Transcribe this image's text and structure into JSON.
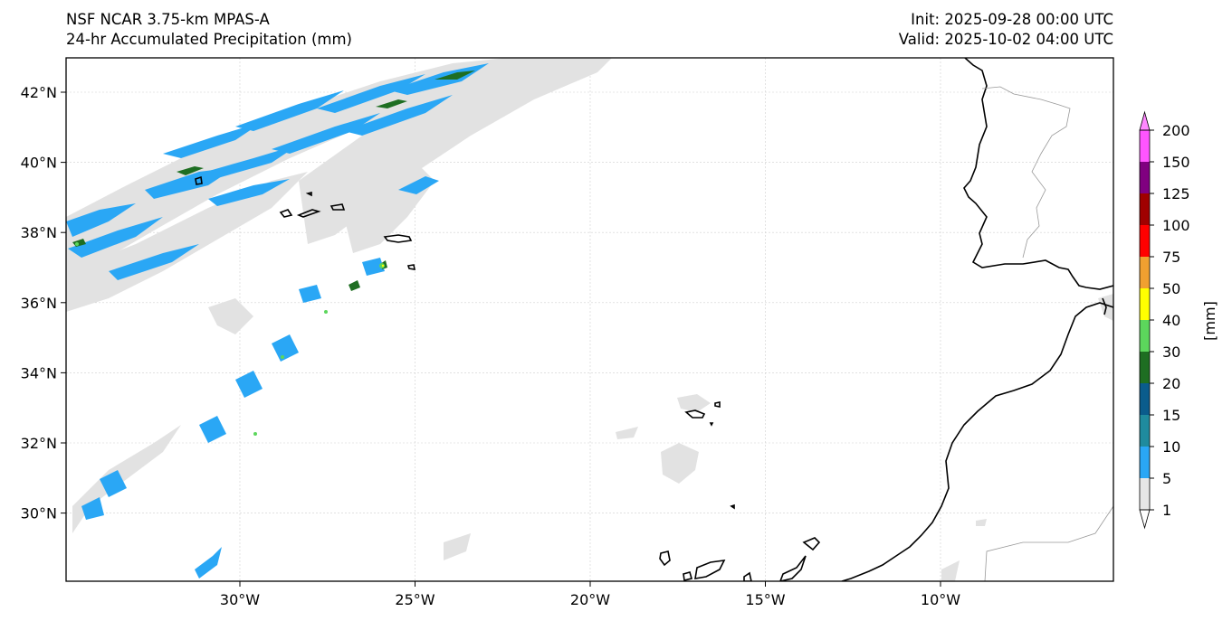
{
  "header": {
    "title_line1": "NSF NCAR 3.75-km MPAS-A",
    "title_line2": "24-hr Accumulated Precipitation (mm)",
    "init": "Init: 2025-09-28 00:00 UTC",
    "valid": "Valid: 2025-10-02 04:00 UTC"
  },
  "axes": {
    "lon_labels": [
      "30°W",
      "25°W",
      "20°W",
      "15°W",
      "10°W"
    ],
    "lat_labels": [
      "42°N",
      "40°N",
      "38°N",
      "36°N",
      "34°N",
      "32°N",
      "30°N"
    ],
    "lon_values": [
      -30,
      -25,
      -20,
      -15,
      -10
    ],
    "lat_values": [
      42,
      40,
      38,
      36,
      34,
      32,
      30
    ],
    "lon_range": [
      -35,
      -5
    ],
    "lat_range": [
      28,
      43
    ]
  },
  "colorbar": {
    "unit_label": "[mm]",
    "levels": [
      "1",
      "5",
      "10",
      "15",
      "20",
      "30",
      "40",
      "50",
      "75",
      "100",
      "125",
      "150",
      "200"
    ],
    "colors": [
      "#e6e6e6",
      "#2aa7f5",
      "#1f8b9e",
      "#0a5c8c",
      "#1e6e22",
      "#5cd65c",
      "#ffff00",
      "#f0a030",
      "#ff0000",
      "#a00000",
      "#800080",
      "#ff55ff"
    ]
  }
}
